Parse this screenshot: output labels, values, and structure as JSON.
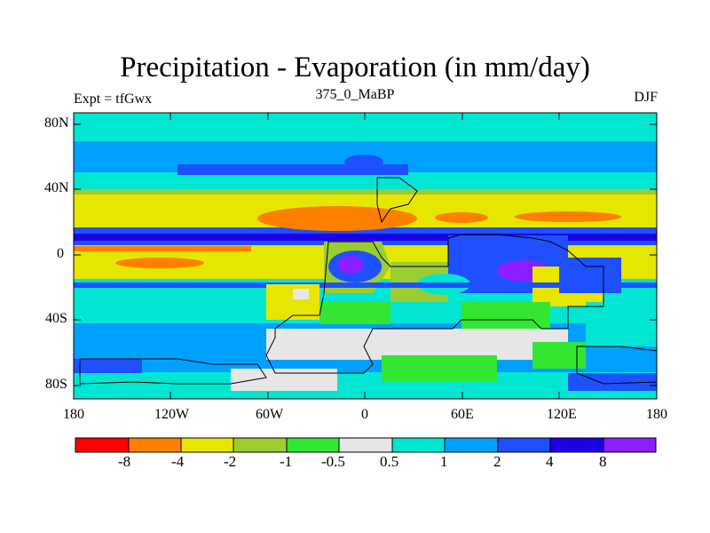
{
  "title": "Precipitation - Evaporation (in mm/day)",
  "subtitle_left": "Expt = tfGwx",
  "subtitle_center": "375_0_MaBP",
  "subtitle_right": "DJF",
  "lat_ticks": [
    "80N",
    "40N",
    "0",
    "40S",
    "80S"
  ],
  "lon_ticks": [
    "180",
    "120W",
    "60W",
    "0",
    "60E",
    "120E",
    "180"
  ],
  "colorbar": {
    "colors": [
      "#ff0000",
      "#ff7f00",
      "#e6e600",
      "#9acd32",
      "#32e632",
      "#e6e6e6",
      "#00e6d2",
      "#00a0ff",
      "#1e50ff",
      "#1e00e6",
      "#8c1eff"
    ],
    "labels": [
      "-8",
      "-4",
      "-2",
      "-1",
      "-0.5",
      "0.5",
      "1",
      "2",
      "4",
      "8"
    ]
  },
  "palette": {
    "red": "#ff0000",
    "orange": "#ff7f00",
    "yellow": "#e6e600",
    "yellowgreen": "#9acd32",
    "green": "#32e632",
    "gray": "#e6e6e6",
    "cyan": "#00e6d2",
    "lightblue": "#00a0ff",
    "blue": "#1e50ff",
    "darkblue": "#1e00e6",
    "purple": "#8c1eff"
  }
}
